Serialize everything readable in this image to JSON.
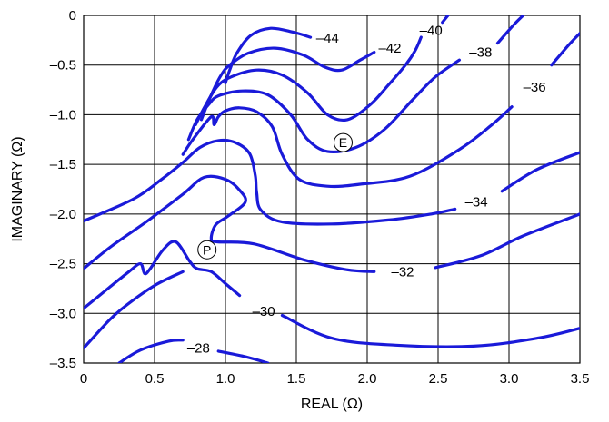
{
  "chart_data": {
    "type": "contour",
    "xlabel": "REAL (Ω)",
    "ylabel": "IMAGINARY (Ω)",
    "xlim": [
      0,
      3.5
    ],
    "ylim": [
      -3.5,
      0
    ],
    "x_ticks": [
      {
        "value": 0,
        "label": "0"
      },
      {
        "value": 0.5,
        "label": "0.5"
      },
      {
        "value": 1.0,
        "label": "1.0"
      },
      {
        "value": 1.5,
        "label": "1.5"
      },
      {
        "value": 2.0,
        "label": "2.0"
      },
      {
        "value": 2.5,
        "label": "2.5"
      },
      {
        "value": 3.0,
        "label": "3.0"
      },
      {
        "value": 3.5,
        "label": "3.5"
      }
    ],
    "y_ticks": [
      {
        "value": 0,
        "label": "0"
      },
      {
        "value": -0.5,
        "label": "–0.5"
      },
      {
        "value": -1.0,
        "label": "–1.0"
      },
      {
        "value": -1.5,
        "label": "–1.5"
      },
      {
        "value": -2.0,
        "label": "–2.0"
      },
      {
        "value": -2.5,
        "label": "–2.5"
      },
      {
        "value": -3.0,
        "label": "–3.0"
      },
      {
        "value": -3.5,
        "label": "–3.5"
      }
    ],
    "grid": true,
    "line_color": "#1a1ad9",
    "contours": [
      {
        "level": -44,
        "label": "–44",
        "label_at": [
          1.72,
          -0.23
        ],
        "points": [
          [
            1.0,
            -0.68
          ],
          [
            1.03,
            -0.55
          ],
          [
            1.08,
            -0.38
          ],
          [
            1.18,
            -0.2
          ],
          [
            1.32,
            -0.13
          ],
          [
            1.48,
            -0.17
          ],
          [
            1.6,
            -0.22
          ]
        ]
      },
      {
        "level": -42,
        "label": "–42",
        "label_at": [
          2.16,
          -0.33
        ],
        "points": [
          [
            0.83,
            -1.05
          ],
          [
            0.9,
            -0.8
          ],
          [
            0.97,
            -0.6
          ],
          [
            1.03,
            -0.5
          ],
          [
            1.16,
            -0.38
          ],
          [
            1.35,
            -0.33
          ],
          [
            1.55,
            -0.4
          ],
          [
            1.7,
            -0.52
          ],
          [
            1.82,
            -0.55
          ],
          [
            1.95,
            -0.45
          ],
          [
            2.05,
            -0.37
          ]
        ]
      },
      {
        "level": -40,
        "label": "–40",
        "label_at": [
          2.45,
          -0.15
        ],
        "points": [
          [
            0.79,
            -1.1
          ],
          [
            0.85,
            -0.93
          ],
          [
            0.94,
            -0.72
          ],
          [
            1.04,
            -0.62
          ],
          [
            1.22,
            -0.55
          ],
          [
            1.4,
            -0.6
          ],
          [
            1.58,
            -0.78
          ],
          [
            1.72,
            -1.0
          ],
          [
            1.86,
            -1.05
          ],
          [
            2.02,
            -0.9
          ],
          [
            2.15,
            -0.7
          ],
          [
            2.27,
            -0.5
          ],
          [
            2.34,
            -0.35
          ],
          [
            2.38,
            -0.22
          ]
        ]
      },
      {
        "level": -40,
        "label": "",
        "label_at": null,
        "points": [
          [
            2.53,
            -0.07
          ],
          [
            2.57,
            0.0
          ]
        ]
      },
      {
        "level": -38,
        "label": "–38",
        "label_at": [
          2.8,
          -0.37
        ],
        "points": [
          [
            0.74,
            -1.25
          ],
          [
            0.8,
            -1.05
          ],
          [
            0.88,
            -0.9
          ],
          [
            0.95,
            -0.81
          ],
          [
            1.12,
            -0.76
          ],
          [
            1.3,
            -0.8
          ],
          [
            1.46,
            -1.0
          ],
          [
            1.58,
            -1.25
          ],
          [
            1.72,
            -1.37
          ],
          [
            1.92,
            -1.33
          ],
          [
            2.12,
            -1.15
          ],
          [
            2.32,
            -0.85
          ],
          [
            2.48,
            -0.62
          ],
          [
            2.65,
            -0.45
          ]
        ]
      },
      {
        "level": -38,
        "label": "",
        "label_at": null,
        "points": [
          [
            2.92,
            -0.28
          ],
          [
            3.03,
            -0.1
          ],
          [
            3.1,
            0.0
          ]
        ]
      },
      {
        "level": -36,
        "label": "–36",
        "label_at": [
          3.18,
          -0.72
        ],
        "points": [
          [
            0.7,
            -1.4
          ],
          [
            0.77,
            -1.25
          ],
          [
            0.9,
            -1.02
          ],
          [
            0.92,
            -1.1
          ],
          [
            0.95,
            -1.02
          ],
          [
            1.0,
            -0.96
          ],
          [
            1.1,
            -0.93
          ],
          [
            1.22,
            -0.97
          ],
          [
            1.33,
            -1.12
          ],
          [
            1.4,
            -1.4
          ],
          [
            1.52,
            -1.65
          ],
          [
            1.72,
            -1.72
          ],
          [
            1.95,
            -1.7
          ],
          [
            2.3,
            -1.62
          ],
          [
            2.65,
            -1.35
          ],
          [
            2.88,
            -1.1
          ],
          [
            3.02,
            -0.92
          ]
        ]
      },
      {
        "level": -36,
        "label": "",
        "label_at": null,
        "points": [
          [
            3.3,
            -0.5
          ],
          [
            3.42,
            -0.3
          ],
          [
            3.5,
            -0.18
          ]
        ]
      },
      {
        "level": -34,
        "label": "–34",
        "label_at": [
          2.77,
          -1.88
        ],
        "points": [
          [
            0.0,
            -2.07
          ],
          [
            0.35,
            -1.85
          ],
          [
            0.55,
            -1.65
          ],
          [
            0.7,
            -1.48
          ],
          [
            0.82,
            -1.33
          ],
          [
            0.95,
            -1.26
          ],
          [
            1.07,
            -1.28
          ],
          [
            1.17,
            -1.39
          ],
          [
            1.21,
            -1.61
          ],
          [
            1.22,
            -1.78
          ],
          [
            1.25,
            -1.96
          ],
          [
            1.4,
            -2.08
          ],
          [
            1.75,
            -2.1
          ],
          [
            2.15,
            -2.06
          ],
          [
            2.45,
            -2.0
          ],
          [
            2.62,
            -1.95
          ]
        ]
      },
      {
        "level": -34,
        "label": "",
        "label_at": null,
        "points": [
          [
            2.95,
            -1.77
          ],
          [
            3.2,
            -1.55
          ],
          [
            3.5,
            -1.38
          ]
        ]
      },
      {
        "level": -32,
        "label": "–32",
        "label_at": [
          2.25,
          -2.58
        ],
        "points": [
          [
            0.0,
            -2.55
          ],
          [
            0.2,
            -2.32
          ],
          [
            0.45,
            -2.07
          ],
          [
            0.7,
            -1.8
          ],
          [
            0.85,
            -1.63
          ],
          [
            1.0,
            -1.65
          ],
          [
            1.1,
            -1.76
          ],
          [
            1.14,
            -1.88
          ],
          [
            1.02,
            -2.02
          ],
          [
            0.93,
            -2.11
          ],
          [
            0.9,
            -2.25
          ],
          [
            0.94,
            -2.28
          ],
          [
            1.2,
            -2.3
          ],
          [
            1.55,
            -2.46
          ],
          [
            1.85,
            -2.56
          ],
          [
            2.05,
            -2.58
          ]
        ]
      },
      {
        "level": -32,
        "label": "",
        "label_at": null,
        "points": [
          [
            2.48,
            -2.54
          ],
          [
            2.8,
            -2.42
          ],
          [
            3.1,
            -2.22
          ],
          [
            3.5,
            -2.0
          ]
        ]
      },
      {
        "level": -30,
        "label": "–30",
        "label_at": [
          1.27,
          -2.98
        ],
        "points": [
          [
            0.0,
            -2.95
          ],
          [
            0.18,
            -2.74
          ],
          [
            0.32,
            -2.58
          ],
          [
            0.4,
            -2.5
          ],
          [
            0.43,
            -2.6
          ],
          [
            0.47,
            -2.55
          ],
          [
            0.56,
            -2.36
          ],
          [
            0.65,
            -2.28
          ],
          [
            0.75,
            -2.48
          ],
          [
            0.8,
            -2.55
          ],
          [
            0.9,
            -2.58
          ],
          [
            1.0,
            -2.7
          ],
          [
            1.1,
            -2.82
          ]
        ]
      },
      {
        "level": -30,
        "label": "",
        "label_at": null,
        "points": [
          [
            1.4,
            -3.02
          ],
          [
            1.75,
            -3.25
          ],
          [
            2.2,
            -3.32
          ],
          [
            2.75,
            -3.33
          ],
          [
            3.2,
            -3.25
          ],
          [
            3.5,
            -3.15
          ]
        ]
      },
      {
        "level": -28,
        "label": "–28",
        "label_at": [
          0.81,
          -3.35
        ],
        "points": [
          [
            0.0,
            -3.35
          ],
          [
            0.18,
            -3.07
          ],
          [
            0.3,
            -2.92
          ],
          [
            0.5,
            -2.72
          ],
          [
            0.7,
            -2.58
          ]
        ]
      },
      {
        "level": -28,
        "label": "",
        "label_at": null,
        "points": [
          [
            0.25,
            -3.5
          ],
          [
            0.4,
            -3.37
          ],
          [
            0.6,
            -3.28
          ],
          [
            0.7,
            -3.27
          ]
        ]
      },
      {
        "level": -28,
        "label": "",
        "label_at": null,
        "points": [
          [
            0.95,
            -3.38
          ],
          [
            1.15,
            -3.44
          ],
          [
            1.3,
            -3.5
          ]
        ]
      }
    ],
    "markers": [
      {
        "label": "E",
        "x": 1.83,
        "y": -1.28
      },
      {
        "label": "P",
        "x": 0.87,
        "y": -2.36
      }
    ]
  }
}
